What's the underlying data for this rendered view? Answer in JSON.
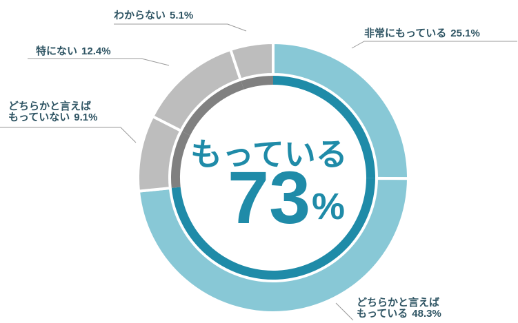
{
  "chart_data": {
    "type": "donut",
    "categories": [
      "非常にもっている",
      "どちらかと言えば\nもっている",
      "どちらかと言えば\nもっていない",
      "特にない",
      "わからない"
    ],
    "values": [
      25.1,
      48.3,
      9.1,
      12.4,
      5.1
    ],
    "value_labels": [
      "25.1%",
      "48.3%",
      "9.1%",
      "12.4%",
      "5.1%"
    ],
    "colors": [
      "#88c8d6",
      "#88c8d6",
      "#bdbdbd",
      "#bdbdbd",
      "#bdbdbd"
    ],
    "inner_colors": [
      "#1f8ba8",
      "#1f8ba8",
      "#808080",
      "#808080",
      "#808080"
    ],
    "center_text": "もっている",
    "center_value": "73",
    "center_unit": "%"
  }
}
